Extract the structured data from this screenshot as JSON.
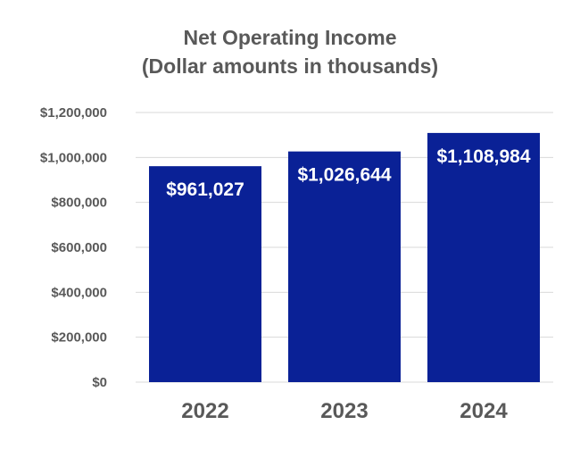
{
  "chart_data": {
    "type": "bar",
    "title": [
      "Net Operating Income",
      "(Dollar amounts in thousands)"
    ],
    "xlabel": "",
    "ylabel": "",
    "categories": [
      "2022",
      "2023",
      "2024"
    ],
    "values": [
      961027,
      1026644,
      1108984
    ],
    "data_labels": [
      "$961,027",
      "$1,026,644",
      "$1,108,984"
    ],
    "ylim": [
      0,
      1200000
    ],
    "y_ticks": [
      {
        "value": 0,
        "label": "$0"
      },
      {
        "value": 200000,
        "label": "$200,000"
      },
      {
        "value": 400000,
        "label": "$400,000"
      },
      {
        "value": 600000,
        "label": "$600,000"
      },
      {
        "value": 800000,
        "label": "$800,000"
      },
      {
        "value": 1000000,
        "label": "$1,000,000"
      },
      {
        "value": 1200000,
        "label": "$1,200,000"
      }
    ],
    "grid": true,
    "legend": "none",
    "bar_color": "#0a2196",
    "grid_color": "#d9d9d9",
    "text_color": "#595959"
  }
}
